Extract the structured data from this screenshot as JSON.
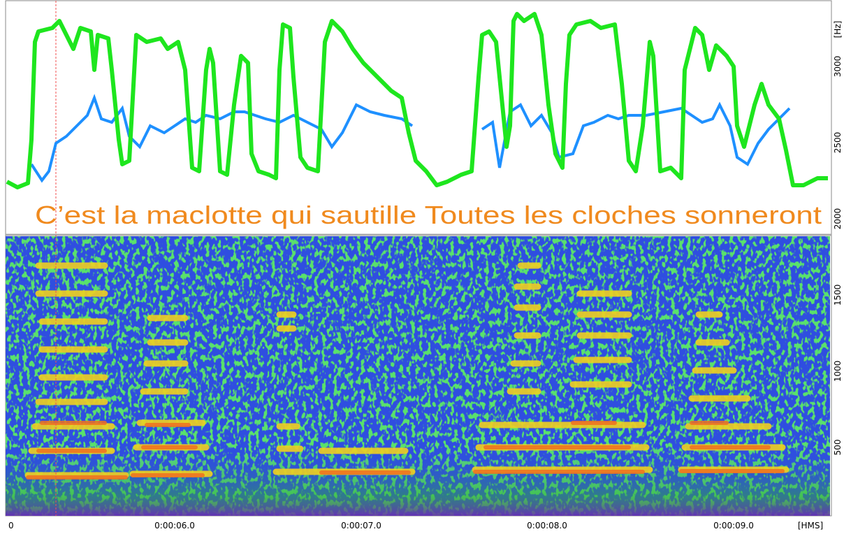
{
  "annotation": "C’est la maclotte qui sautille Toutes les cloches sonneront",
  "time_axis": {
    "labels": [
      "0",
      "0:00:06.0",
      "0:00:07.0",
      "0:00:08.0",
      "0:00:09.0"
    ],
    "unit": "[HMS]"
  },
  "frequency_axis": {
    "labels": [
      "500",
      "1000",
      "1500",
      "2000",
      "2500",
      "3000"
    ],
    "unit": "[Hz]"
  }
}
